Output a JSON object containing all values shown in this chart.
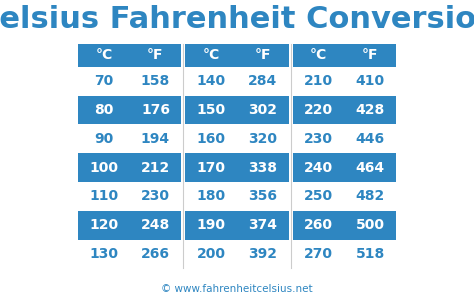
{
  "title": "Celsius Fahrenheit Conversion",
  "title_color": "#2e86c1",
  "title_fontsize": 22,
  "header_bg": "#2e86c1",
  "header_text_color": "#ffffff",
  "row_highlight_bg": "#2e86c1",
  "row_highlight_text": "#ffffff",
  "row_normal_text": "#2e86c1",
  "background_color": "#ffffff",
  "footer_text": "© www.fahrenheitcelsius.net",
  "footer_color": "#2e86c1",
  "columns": [
    "°C",
    "°F",
    "°C",
    "°F",
    "°C",
    "°F"
  ],
  "data": [
    [
      70,
      158,
      140,
      284,
      210,
      410
    ],
    [
      80,
      176,
      150,
      302,
      220,
      428
    ],
    [
      90,
      194,
      160,
      320,
      230,
      446
    ],
    [
      100,
      212,
      170,
      338,
      240,
      464
    ],
    [
      110,
      230,
      180,
      356,
      250,
      482
    ],
    [
      120,
      248,
      190,
      374,
      260,
      500
    ],
    [
      130,
      266,
      200,
      392,
      270,
      518
    ]
  ],
  "highlighted_rows": [
    1,
    3,
    5
  ]
}
